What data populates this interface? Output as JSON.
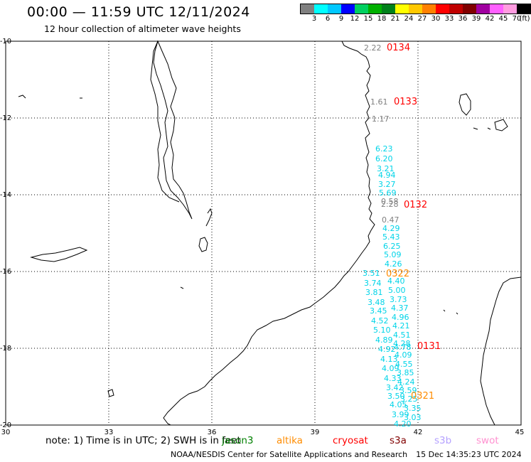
{
  "header": {
    "title": "00:00 — 11:59 UTC 12/11/2024",
    "subtitle": "12 hour collection of altimeter wave heights"
  },
  "legend": {
    "unit": "(ft)",
    "colors": [
      "#808080",
      "#00ffff",
      "#00c8ff",
      "#0000ff",
      "#00d060",
      "#00b000",
      "#00801a",
      "#ffff00",
      "#ffc800",
      "#ff8000",
      "#ff0000",
      "#c00000",
      "#800000",
      "#a000a0",
      "#ff60ff",
      "#ff9ce0",
      "#000000"
    ],
    "labels": [
      "3",
      "6",
      "9",
      "12",
      "15",
      "18",
      "21",
      "24",
      "27",
      "30",
      "33",
      "36",
      "39",
      "42",
      "45",
      "70"
    ]
  },
  "axes": {
    "lat_labels": [
      "-10",
      "-12",
      "-14",
      "-16",
      "-18",
      "-20"
    ],
    "lon_labels": [
      "30",
      "33",
      "36",
      "39",
      "42",
      "45"
    ]
  },
  "passes": [
    {
      "id": "0134",
      "color": "#ff0000"
    },
    {
      "id": "0133",
      "color": "#ff0000"
    },
    {
      "id": "0132",
      "color": "#ff0000"
    },
    {
      "id": "0131",
      "color": "#ff0000"
    },
    {
      "id": "0322",
      "color": "#ff8c00"
    },
    {
      "id": "0321",
      "color": "#ff8c00"
    }
  ],
  "wave_labels_gray": [
    "2.22",
    "1.61",
    "1.17",
    "0.58",
    "2.28",
    "0.47"
  ],
  "wave_labels_cyan_a": [
    "6.23",
    "6.20",
    "3.21",
    "4.94",
    "3.27",
    "5.69",
    "4.29",
    "5.43",
    "6.25",
    "5.09",
    "4.26"
  ],
  "wave_labels_cyan_b": [
    "4.40",
    "5.00",
    "3.73",
    "4.37",
    "4.96",
    "4.21",
    "4.51",
    "4.28",
    "4.78",
    "4.09",
    "4.55",
    "3.85",
    "4.24",
    "3.59",
    "3.25",
    "3.35",
    "3.03"
  ],
  "wave_labels_cyan_c": [
    "3.51",
    "3.74",
    "3.81",
    "3.48",
    "3.45",
    "4.52",
    "5.10",
    "4.89",
    "4.92",
    "4.13",
    "4.09",
    "4.33",
    "3.42",
    "3.50",
    "4.05",
    "3.99",
    "4.20"
  ],
  "note": {
    "text": "note: 1) Time is in UTC; 2) SWH is in feet",
    "satellites": [
      {
        "name": "jason3",
        "color": "#008000"
      },
      {
        "name": "altika",
        "color": "#ff8c00"
      },
      {
        "name": "cryosat",
        "color": "#ff0000"
      },
      {
        "name": "s3a",
        "color": "#800000"
      },
      {
        "name": "s3b",
        "color": "#b4a0ff"
      },
      {
        "name": "swot",
        "color": "#ff90d0"
      }
    ]
  },
  "footer": {
    "credit": "NOAA/NESDIS Center for Satellite Applications and Research",
    "timestamp": "15 Dec 14:35:23 UTC 2024"
  }
}
